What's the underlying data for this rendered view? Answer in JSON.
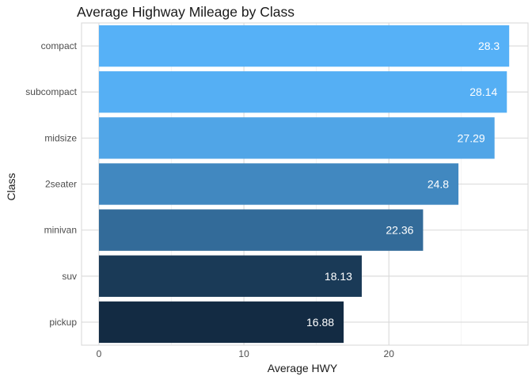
{
  "chart_data": {
    "type": "bar",
    "orientation": "horizontal",
    "title": "Average Highway Mileage by Class",
    "xlabel": "Average HWY",
    "ylabel": "Class",
    "categories": [
      "compact",
      "subcompact",
      "midsize",
      "2seater",
      "minivan",
      "suv",
      "pickup"
    ],
    "values": [
      28.3,
      28.14,
      27.29,
      24.8,
      22.36,
      18.13,
      16.88
    ],
    "value_labels": [
      "28.3",
      "28.14",
      "27.29",
      "24.8",
      "22.36",
      "18.13",
      "16.88"
    ],
    "xlim": [
      -1.2,
      29.6
    ],
    "x_ticks": [
      0,
      10,
      20
    ],
    "x_tick_labels": [
      "0",
      "10",
      "20"
    ],
    "grid": true,
    "color_low": "#132B43",
    "color_high": "#56B1F7"
  }
}
